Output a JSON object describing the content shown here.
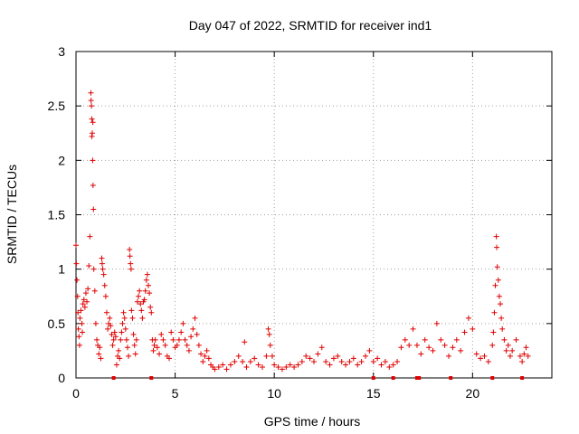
{
  "chart_data": {
    "type": "scatter",
    "title": "Day 047 of 2022, SRMTID for receiver ind1",
    "xlabel": "GPS time / hours",
    "ylabel": "SRMTID / TECUs",
    "xlim": [
      0,
      24
    ],
    "ylim": [
      0,
      3
    ],
    "xticks": [
      0,
      5,
      10,
      15,
      20
    ],
    "yticks": [
      0,
      0.5,
      1,
      1.5,
      2,
      2.5,
      3
    ],
    "ytick_labels": [
      "0",
      "0.5",
      "1",
      "1.5",
      "2",
      "2.5",
      "3"
    ],
    "grid": true,
    "marker": "+",
    "color": "#e00000",
    "series": [
      {
        "name": "SRMTID",
        "points": [
          [
            0.0,
            1.22
          ],
          [
            0.02,
            1.05
          ],
          [
            0.05,
            0.9
          ],
          [
            0.08,
            0.75
          ],
          [
            0.1,
            0.6
          ],
          [
            0.12,
            0.45
          ],
          [
            0.15,
            0.38
          ],
          [
            0.18,
            0.3
          ],
          [
            0.2,
            0.55
          ],
          [
            0.25,
            0.62
          ],
          [
            0.3,
            0.5
          ],
          [
            0.32,
            0.42
          ],
          [
            0.35,
            0.68
          ],
          [
            0.4,
            0.72
          ],
          [
            0.45,
            0.65
          ],
          [
            0.5,
            0.78
          ],
          [
            0.55,
            0.7
          ],
          [
            0.6,
            0.82
          ],
          [
            0.65,
            1.03
          ],
          [
            0.7,
            1.3
          ],
          [
            0.75,
            2.62
          ],
          [
            0.76,
            2.55
          ],
          [
            0.78,
            2.5
          ],
          [
            0.8,
            2.38
          ],
          [
            0.82,
            2.25
          ],
          [
            0.84,
            2.0
          ],
          [
            0.86,
            1.77
          ],
          [
            0.88,
            1.55
          ],
          [
            0.8,
            2.22
          ],
          [
            0.85,
            2.35
          ],
          [
            0.9,
            1.0
          ],
          [
            0.95,
            0.8
          ],
          [
            1.0,
            0.5
          ],
          [
            1.05,
            0.35
          ],
          [
            1.1,
            0.3
          ],
          [
            1.15,
            0.22
          ],
          [
            1.2,
            0.28
          ],
          [
            1.25,
            0.18
          ],
          [
            1.3,
            1.1
          ],
          [
            1.32,
            1.05
          ],
          [
            1.35,
            1.0
          ],
          [
            1.4,
            0.95
          ],
          [
            1.45,
            0.85
          ],
          [
            1.5,
            0.75
          ],
          [
            1.55,
            0.6
          ],
          [
            1.6,
            0.45
          ],
          [
            1.65,
            0.5
          ],
          [
            1.7,
            0.55
          ],
          [
            1.75,
            0.48
          ],
          [
            1.8,
            0.4
          ],
          [
            1.85,
            0.3
          ],
          [
            1.9,
            0.35
          ],
          [
            1.95,
            0.42
          ],
          [
            2.0,
            0.38
          ],
          [
            2.05,
            0.12
          ],
          [
            2.1,
            0.2
          ],
          [
            2.15,
            0.25
          ],
          [
            2.2,
            0.18
          ],
          [
            2.25,
            0.35
          ],
          [
            2.3,
            0.42
          ],
          [
            2.35,
            0.5
          ],
          [
            2.4,
            0.6
          ],
          [
            2.45,
            0.55
          ],
          [
            2.5,
            0.45
          ],
          [
            2.55,
            0.35
          ],
          [
            2.6,
            0.28
          ],
          [
            2.65,
            0.2
          ],
          [
            2.7,
            1.18
          ],
          [
            2.72,
            1.12
          ],
          [
            2.75,
            1.05
          ],
          [
            2.78,
            1.0
          ],
          [
            2.8,
            0.62
          ],
          [
            2.85,
            0.55
          ],
          [
            2.9,
            0.4
          ],
          [
            2.95,
            0.3
          ],
          [
            3.0,
            0.22
          ],
          [
            3.05,
            0.35
          ],
          [
            3.1,
            0.7
          ],
          [
            3.15,
            0.75
          ],
          [
            3.2,
            0.8
          ],
          [
            3.25,
            0.68
          ],
          [
            3.3,
            0.62
          ],
          [
            3.35,
            0.55
          ],
          [
            3.4,
            0.7
          ],
          [
            3.45,
            0.72
          ],
          [
            3.5,
            0.8
          ],
          [
            3.55,
            0.9
          ],
          [
            3.6,
            0.95
          ],
          [
            3.65,
            0.85
          ],
          [
            3.7,
            0.78
          ],
          [
            3.75,
            0.65
          ],
          [
            3.8,
            0.6
          ],
          [
            3.85,
            0.35
          ],
          [
            3.9,
            0.25
          ],
          [
            3.95,
            0.3
          ],
          [
            4.0,
            0.35
          ],
          [
            4.1,
            0.28
          ],
          [
            4.2,
            0.22
          ],
          [
            4.3,
            0.4
          ],
          [
            4.4,
            0.35
          ],
          [
            4.5,
            0.3
          ],
          [
            4.6,
            0.2
          ],
          [
            4.7,
            0.18
          ],
          [
            4.8,
            0.42
          ],
          [
            4.9,
            0.35
          ],
          [
            5.0,
            0.28
          ],
          [
            5.1,
            0.3
          ],
          [
            5.2,
            0.35
          ],
          [
            5.3,
            0.42
          ],
          [
            5.4,
            0.5
          ],
          [
            5.5,
            0.35
          ],
          [
            5.6,
            0.3
          ],
          [
            5.7,
            0.25
          ],
          [
            5.8,
            0.38
          ],
          [
            5.9,
            0.45
          ],
          [
            6.0,
            0.55
          ],
          [
            6.1,
            0.4
          ],
          [
            6.2,
            0.3
          ],
          [
            6.3,
            0.22
          ],
          [
            6.4,
            0.15
          ],
          [
            6.5,
            0.2
          ],
          [
            6.6,
            0.25
          ],
          [
            6.7,
            0.18
          ],
          [
            6.8,
            0.12
          ],
          [
            6.9,
            0.1
          ],
          [
            7.0,
            0.08
          ],
          [
            7.2,
            0.1
          ],
          [
            7.4,
            0.12
          ],
          [
            7.6,
            0.08
          ],
          [
            7.8,
            0.12
          ],
          [
            8.0,
            0.15
          ],
          [
            8.2,
            0.2
          ],
          [
            8.4,
            0.15
          ],
          [
            8.5,
            0.33
          ],
          [
            8.6,
            0.1
          ],
          [
            8.8,
            0.15
          ],
          [
            9.0,
            0.18
          ],
          [
            9.2,
            0.12
          ],
          [
            9.4,
            0.1
          ],
          [
            9.6,
            0.2
          ],
          [
            9.7,
            0.45
          ],
          [
            9.75,
            0.4
          ],
          [
            9.8,
            0.3
          ],
          [
            9.9,
            0.2
          ],
          [
            10.0,
            0.12
          ],
          [
            10.2,
            0.1
          ],
          [
            10.4,
            0.08
          ],
          [
            10.6,
            0.1
          ],
          [
            10.8,
            0.12
          ],
          [
            11.0,
            0.1
          ],
          [
            11.2,
            0.12
          ],
          [
            11.4,
            0.15
          ],
          [
            11.6,
            0.2
          ],
          [
            11.8,
            0.18
          ],
          [
            12.0,
            0.15
          ],
          [
            12.2,
            0.22
          ],
          [
            12.4,
            0.28
          ],
          [
            12.6,
            0.15
          ],
          [
            12.8,
            0.12
          ],
          [
            13.0,
            0.18
          ],
          [
            13.2,
            0.2
          ],
          [
            13.4,
            0.15
          ],
          [
            13.6,
            0.12
          ],
          [
            13.8,
            0.15
          ],
          [
            14.0,
            0.18
          ],
          [
            14.2,
            0.12
          ],
          [
            14.4,
            0.15
          ],
          [
            14.6,
            0.2
          ],
          [
            14.8,
            0.25
          ],
          [
            15.0,
            0.15
          ],
          [
            15.2,
            0.18
          ],
          [
            15.4,
            0.12
          ],
          [
            15.6,
            0.15
          ],
          [
            15.8,
            0.1
          ],
          [
            16.0,
            0.12
          ],
          [
            16.2,
            0.15
          ],
          [
            16.4,
            0.28
          ],
          [
            16.6,
            0.35
          ],
          [
            16.8,
            0.3
          ],
          [
            17.0,
            0.45
          ],
          [
            17.2,
            0.3
          ],
          [
            17.4,
            0.22
          ],
          [
            17.6,
            0.35
          ],
          [
            17.8,
            0.28
          ],
          [
            18.0,
            0.25
          ],
          [
            18.2,
            0.5
          ],
          [
            18.4,
            0.35
          ],
          [
            18.6,
            0.3
          ],
          [
            18.8,
            0.2
          ],
          [
            19.0,
            0.28
          ],
          [
            19.2,
            0.35
          ],
          [
            19.4,
            0.25
          ],
          [
            19.6,
            0.42
          ],
          [
            19.8,
            0.55
          ],
          [
            20.0,
            0.45
          ],
          [
            20.2,
            0.22
          ],
          [
            20.4,
            0.18
          ],
          [
            20.6,
            0.2
          ],
          [
            20.8,
            0.15
          ],
          [
            21.0,
            0.3
          ],
          [
            21.05,
            0.42
          ],
          [
            21.1,
            0.6
          ],
          [
            21.15,
            0.85
          ],
          [
            21.2,
            1.3
          ],
          [
            21.22,
            1.2
          ],
          [
            21.25,
            1.02
          ],
          [
            21.3,
            0.9
          ],
          [
            21.35,
            0.75
          ],
          [
            21.4,
            0.68
          ],
          [
            21.45,
            0.55
          ],
          [
            21.5,
            0.45
          ],
          [
            21.6,
            0.35
          ],
          [
            21.7,
            0.25
          ],
          [
            21.8,
            0.3
          ],
          [
            21.9,
            0.2
          ],
          [
            22.0,
            0.25
          ],
          [
            22.2,
            0.35
          ],
          [
            22.4,
            0.2
          ],
          [
            22.5,
            0.15
          ],
          [
            22.6,
            0.22
          ],
          [
            22.7,
            0.28
          ],
          [
            22.8,
            0.2
          ]
        ]
      }
    ],
    "baseline_markers_x": [
      1.9,
      3.8,
      15.0,
      16.0,
      17.2,
      17.3,
      18.9,
      21.0,
      22.5
    ]
  }
}
